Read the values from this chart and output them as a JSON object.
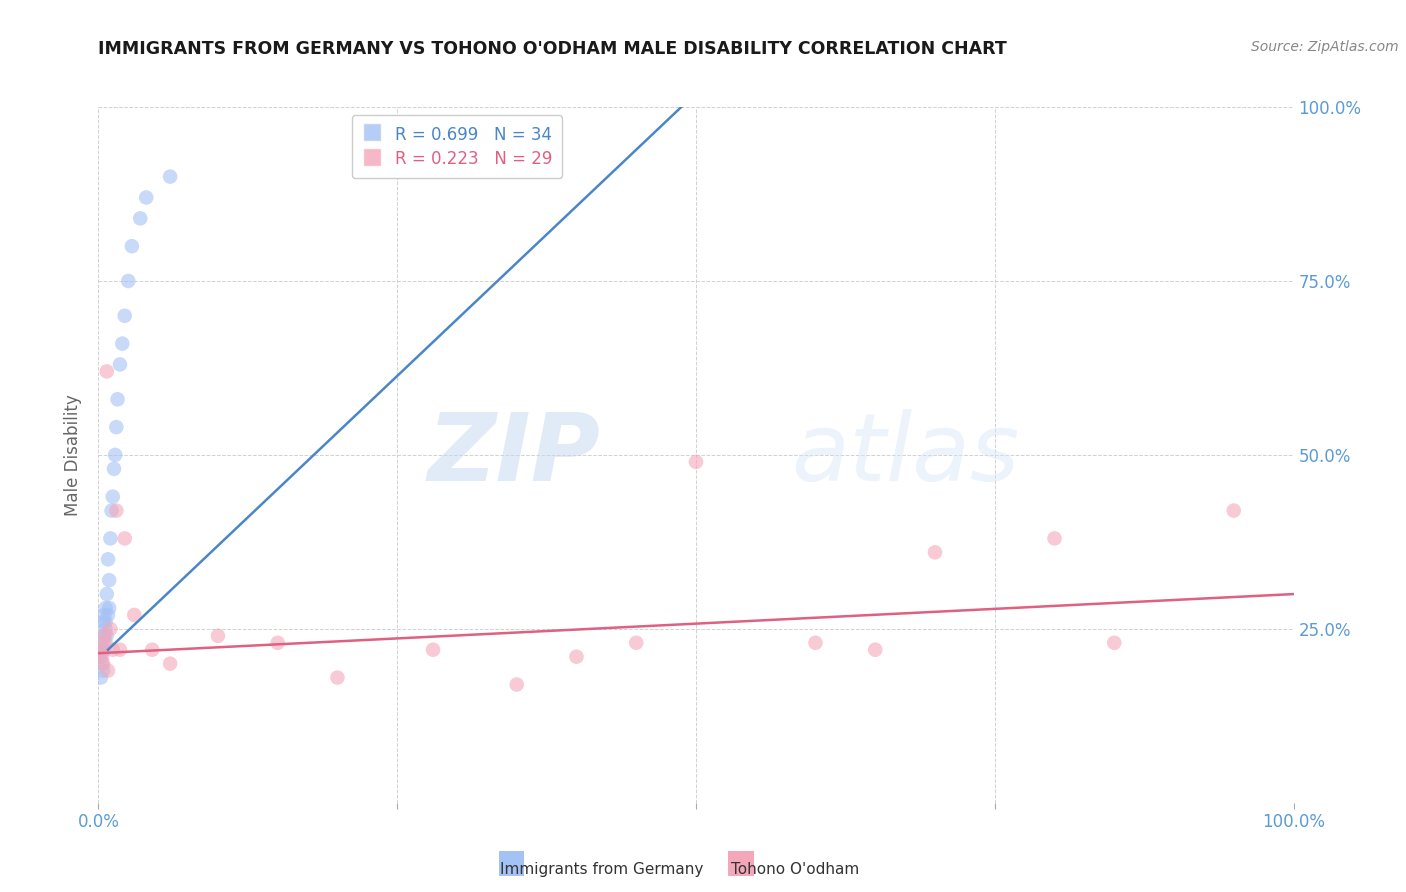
{
  "title": "IMMIGRANTS FROM GERMANY VS TOHONO O'ODHAM MALE DISABILITY CORRELATION CHART",
  "source": "Source: ZipAtlas.com",
  "ylabel": "Male Disability",
  "xlim": [
    0,
    1
  ],
  "ylim": [
    0,
    1
  ],
  "blue_R": 0.699,
  "blue_N": 34,
  "pink_R": 0.223,
  "pink_N": 29,
  "blue_color": "#a4c2f4",
  "pink_color": "#f4a7b9",
  "blue_line_color": "#4a86c8",
  "pink_line_color": "#e06080",
  "legend_label_blue": "Immigrants from Germany",
  "legend_label_pink": "Tohono O'odham",
  "blue_points_x": [
    0.002,
    0.002,
    0.003,
    0.003,
    0.004,
    0.004,
    0.004,
    0.005,
    0.005,
    0.005,
    0.006,
    0.006,
    0.006,
    0.007,
    0.007,
    0.008,
    0.008,
    0.009,
    0.009,
    0.01,
    0.011,
    0.012,
    0.013,
    0.014,
    0.015,
    0.016,
    0.018,
    0.02,
    0.022,
    0.025,
    0.028,
    0.035,
    0.04,
    0.06
  ],
  "blue_points_y": [
    0.18,
    0.21,
    0.2,
    0.22,
    0.19,
    0.23,
    0.26,
    0.22,
    0.24,
    0.27,
    0.25,
    0.26,
    0.28,
    0.24,
    0.3,
    0.27,
    0.35,
    0.28,
    0.32,
    0.38,
    0.42,
    0.44,
    0.48,
    0.5,
    0.54,
    0.58,
    0.63,
    0.66,
    0.7,
    0.75,
    0.8,
    0.84,
    0.87,
    0.9
  ],
  "pink_points_x": [
    0.002,
    0.003,
    0.004,
    0.005,
    0.006,
    0.007,
    0.008,
    0.01,
    0.012,
    0.015,
    0.018,
    0.022,
    0.03,
    0.045,
    0.06,
    0.1,
    0.15,
    0.2,
    0.28,
    0.35,
    0.4,
    0.45,
    0.5,
    0.6,
    0.65,
    0.7,
    0.8,
    0.85,
    0.95
  ],
  "pink_points_y": [
    0.22,
    0.21,
    0.2,
    0.24,
    0.23,
    0.62,
    0.19,
    0.25,
    0.22,
    0.42,
    0.22,
    0.38,
    0.27,
    0.22,
    0.2,
    0.24,
    0.23,
    0.18,
    0.22,
    0.17,
    0.21,
    0.23,
    0.49,
    0.23,
    0.22,
    0.36,
    0.38,
    0.23,
    0.42
  ],
  "blue_line_x": [
    0.008,
    0.5
  ],
  "blue_line_y": [
    0.22,
    1.02
  ],
  "pink_line_x": [
    0.0,
    1.0
  ],
  "pink_line_y": [
    0.215,
    0.3
  ],
  "watermark_zip": "ZIP",
  "watermark_atlas": "atlas",
  "background_color": "#ffffff",
  "grid_color": "#cccccc",
  "right_axis_color": "#5b9bd5",
  "title_color": "#1a1a1a",
  "source_color": "#888888",
  "ylabel_color": "#666666"
}
